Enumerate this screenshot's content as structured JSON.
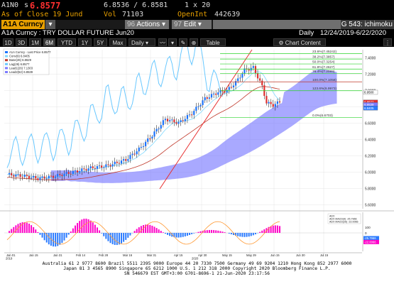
{
  "quote": {
    "ticker": "A1N0",
    "side": "s",
    "last": "6.8577",
    "bid_ask": "6.8536 / 6.8581",
    "size": "1 x 20",
    "as_of": "As of Close 19 Jund",
    "vol_label": "Vol",
    "vol": "71103",
    "oi_label": "OpenInt",
    "oi": "442639"
  },
  "toolbar": {
    "actions_num": "96",
    "actions_label": "Actions",
    "edit_num": "97",
    "edit_label": "Edit",
    "right_title": "G 543: ichimoku"
  },
  "title": {
    "left": "A1A Curncy",
    "sub": "A1A Curncy : TRY DOLLAR FUTURE Jun20",
    "freq": "Daily",
    "range": "12/24/2019-6/22/2020"
  },
  "periods": [
    "1D",
    "3D",
    "1M",
    "6M",
    "YTD",
    "1Y",
    "5Y",
    "Max"
  ],
  "active_period": "6M",
  "freq_select": "Daily",
  "table_label": "Table",
  "chart_content_label": "Chart Content",
  "legend": [
    "A1A Curncy - Last Price  6.8577",
    "Conv(9)  6.8405",
    "Base(26)  6.8629",
    "Lag(26)  6.8577",
    "Lead1(26)  7.1303",
    "Lead2(52)  6.8539"
  ],
  "fib_labels": [
    "23.6%(7.45242)",
    "38.2%(7.3857)",
    "50.0%(7.3254)",
    "61.8%(7.2627)",
    "76.4%(7.2089)",
    "100.0%(7.1058)",
    "123.6%(6.9973)",
    "0.0%(6.6703)"
  ],
  "price_ticks": [
    "7.4000",
    "7.2000",
    "7.0000",
    "6.8000",
    "6.6000",
    "6.4000",
    "6.2000",
    "6.0000",
    "5.8000",
    "5.6000"
  ],
  "price_tags": [
    "6.9500",
    "6.8577",
    "6.8539",
    "6.8405"
  ],
  "macd_legend": [
    "ADX",
    "ADX MACD(9)  -25.7966",
    "ADX MACD(26)  -22.0066"
  ],
  "macd_ticks": [
    "100",
    "0",
    "-100"
  ],
  "macd_tags": [
    "-25.7966",
    "-22.0066"
  ],
  "x_ticks": [
    "Jan 01",
    "Jan 15",
    "Jan 31",
    "Feb 14",
    "Feb 28",
    "Mar 16",
    "Mar 31",
    "Apr 15",
    "Apr 30",
    "May 15",
    "May 29",
    "Jun 15",
    "Jun 30",
    "Jul 15"
  ],
  "x_years": [
    "2019",
    "2020"
  ],
  "footer_lines": [
    "Australia 61 2 9777 8600 Brazil 5511 2395 9000 Europe 44 20 7330 7500 Germany 49 69 9204 1210 Hong Kong 852 2977 6000",
    "Japan 81 3 4565 8900        Singapore 65 6212 1000       U.S. 1 212 318 2000          Copyright 2020 Bloomberg Finance L.P.",
    "SN 546679 EST GMT+3:00 G701-8696-1 21-Jun-2020 23:17:56"
  ],
  "colors": {
    "price_line": "#1a73ff",
    "conv_line": "#7fd8ff",
    "base_line": "#c0392b",
    "lag_line": "#69c8ff",
    "cloud": "#7b7bff",
    "trend_line": "#e83030",
    "fib_green": "#2bd42b",
    "macd_pos": "#ff00c8",
    "macd_neg": "#2b7bff",
    "macd_line": "#ff9933",
    "accent": "#e8a000"
  }
}
